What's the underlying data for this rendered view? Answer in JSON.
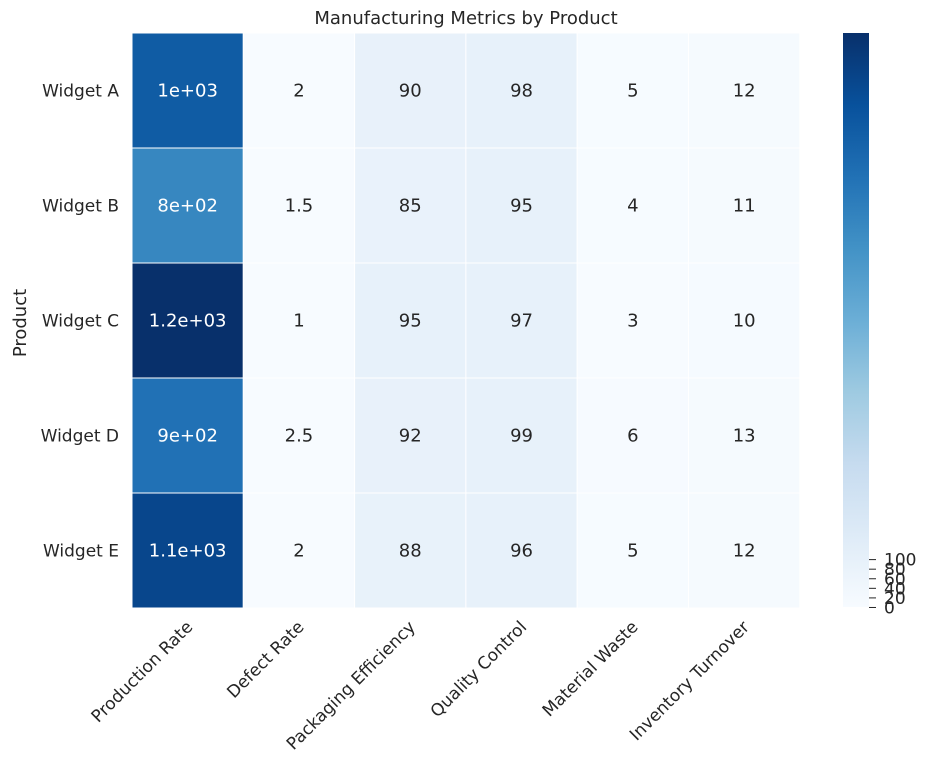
{
  "chart_data": {
    "type": "heatmap",
    "title": "Manufacturing Metrics by Product",
    "xlabel": "",
    "ylabel": "Product",
    "columns": [
      "Production Rate",
      "Defect Rate",
      "Packaging Efficiency",
      "Quality Control",
      "Material Waste",
      "Inventory Turnover"
    ],
    "rows": [
      "Widget A",
      "Widget B",
      "Widget C",
      "Widget D",
      "Widget E"
    ],
    "values": [
      [
        1000,
        2,
        90,
        98,
        5,
        12
      ],
      [
        800,
        1.5,
        85,
        95,
        4,
        11
      ],
      [
        1200,
        1,
        95,
        97,
        3,
        10
      ],
      [
        900,
        2.5,
        92,
        99,
        6,
        13
      ],
      [
        1100,
        2,
        88,
        96,
        5,
        12
      ]
    ],
    "annotations": [
      [
        "1e+03",
        "2",
        "90",
        "98",
        "5",
        "12"
      ],
      [
        "8e+02",
        "1.5",
        "85",
        "95",
        "4",
        "11"
      ],
      [
        "1.2e+03",
        "1",
        "95",
        "97",
        "3",
        "10"
      ],
      [
        "9e+02",
        "2.5",
        "92",
        "99",
        "6",
        "13"
      ],
      [
        "1.1e+03",
        "2",
        "88",
        "96",
        "5",
        "12"
      ]
    ],
    "colormap": "Blues",
    "color_range": [
      1,
      1200
    ],
    "colorbar_ticks": [
      0,
      20,
      40,
      60,
      80,
      100
    ],
    "colorbar_tick_labels": [
      "0",
      "20",
      "40",
      "60",
      "80",
      "100"
    ]
  }
}
